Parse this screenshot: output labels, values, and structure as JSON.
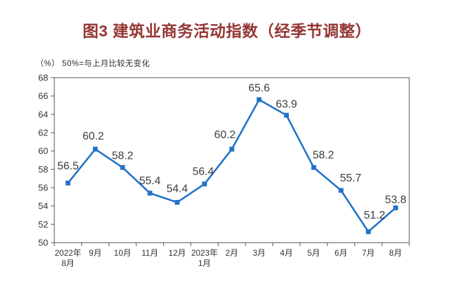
{
  "chart_data": {
    "type": "line",
    "title": "图3 建筑业商务活动指数（经季节调整）",
    "axis_note": "（%） 50%=与上月比较无变化",
    "categories": [
      [
        "2022年",
        "8月"
      ],
      [
        "9月"
      ],
      [
        "10月"
      ],
      [
        "11月"
      ],
      [
        "12月"
      ],
      [
        "2023年",
        "1月"
      ],
      [
        "2月"
      ],
      [
        "3月"
      ],
      [
        "4月"
      ],
      [
        "5月"
      ],
      [
        "6月"
      ],
      [
        "7月"
      ],
      [
        "8月"
      ]
    ],
    "values": [
      56.5,
      60.2,
      58.2,
      55.4,
      54.4,
      56.4,
      60.2,
      65.6,
      63.9,
      58.2,
      55.7,
      51.2,
      53.8
    ],
    "ylim": [
      50,
      68
    ],
    "ytick_step": 2,
    "grid": false,
    "legend": "none",
    "marker": "square",
    "colors": {
      "line": "#2272C8",
      "title": "#943634",
      "value_label": "#3b3b3b",
      "axis_text": "#333333",
      "frame": "#6e6e6e"
    }
  }
}
